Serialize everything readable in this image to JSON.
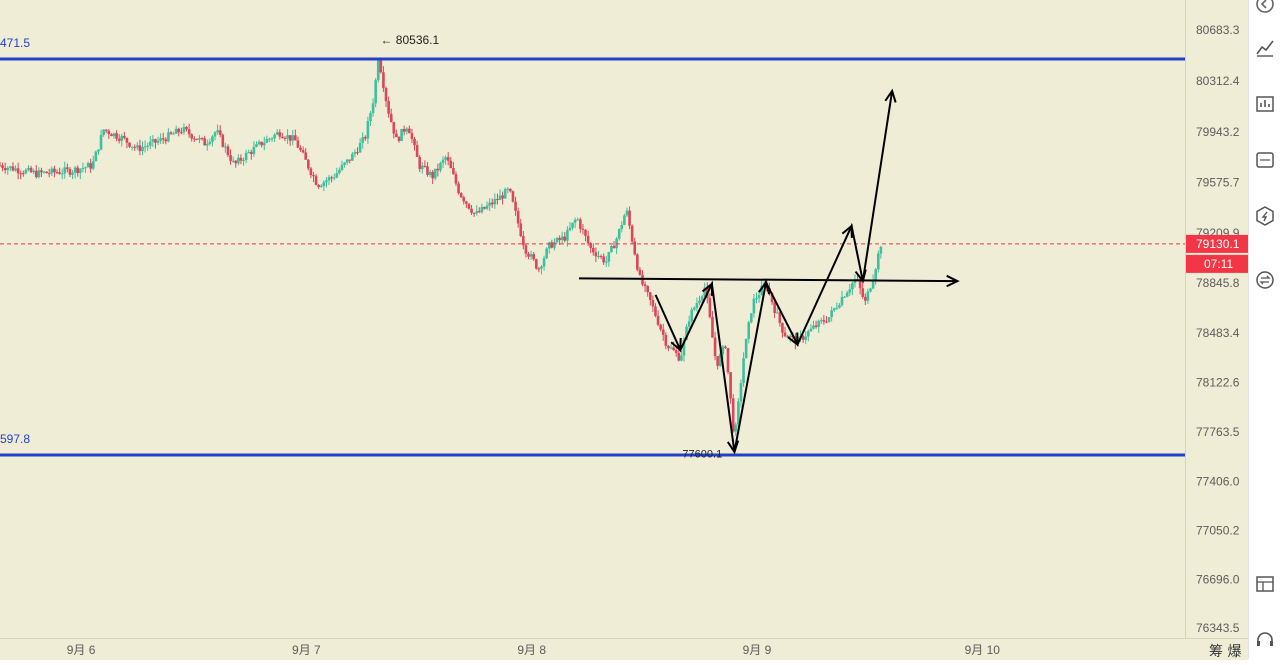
{
  "chart_data": {
    "type": "candlestick",
    "y_ticks": [
      "80683.3",
      "80312.4",
      "79943.2",
      "79575.7",
      "79209.9",
      "78845.8",
      "78483.4",
      "78122.6",
      "77763.5",
      "77406.0",
      "77050.2",
      "76696.0",
      "76343.5"
    ],
    "y_tick_values": [
      80683.3,
      80312.4,
      79943.2,
      79575.7,
      79209.9,
      78845.8,
      78483.4,
      78122.6,
      77763.5,
      77406.0,
      77050.2,
      76696.0,
      76343.5
    ],
    "ylim": [
      76270,
      80900
    ],
    "x_labels": [
      "9月 6",
      "9月 7",
      "9月 8",
      "9月 9",
      "9月 10"
    ],
    "x_label_positions_days": [
      0,
      1,
      2,
      3,
      4
    ],
    "xlim_days": [
      -0.36,
      4.9
    ],
    "current_price": {
      "label": "79130.1",
      "value": 79130.1,
      "countdown": "07:11",
      "color": "#f23645"
    },
    "high_marker": {
      "label": "← 80536.1",
      "value": 80536.1,
      "day": 1.32
    },
    "low_marker": {
      "label": "77600.1",
      "value": 77600.1,
      "day": 2.9
    },
    "horizontal_levels": [
      {
        "label": "471.5",
        "value": 80471.5,
        "color": "#2340c8"
      },
      {
        "label": "597.8",
        "value": 77597.8,
        "color": "#2340c8"
      }
    ],
    "up_color": "#3dbfa0",
    "down_color": "#d9475a",
    "price_path": [
      [
        -0.36,
        79700
      ],
      [
        -0.2,
        79640
      ],
      [
        -0.05,
        79660
      ],
      [
        0.05,
        79700
      ],
      [
        0.1,
        79960
      ],
      [
        0.18,
        79900
      ],
      [
        0.25,
        79820
      ],
      [
        0.35,
        79880
      ],
      [
        0.45,
        79960
      ],
      [
        0.55,
        79860
      ],
      [
        0.6,
        79950
      ],
      [
        0.68,
        79700
      ],
      [
        0.72,
        79760
      ],
      [
        0.8,
        79860
      ],
      [
        0.88,
        79940
      ],
      [
        0.95,
        79880
      ],
      [
        1.0,
        79720
      ],
      [
        1.05,
        79560
      ],
      [
        1.12,
        79620
      ],
      [
        1.2,
        79760
      ],
      [
        1.26,
        79900
      ],
      [
        1.3,
        80200
      ],
      [
        1.32,
        80500
      ],
      [
        1.36,
        80120
      ],
      [
        1.4,
        79880
      ],
      [
        1.45,
        80000
      ],
      [
        1.5,
        79700
      ],
      [
        1.56,
        79620
      ],
      [
        1.62,
        79760
      ],
      [
        1.68,
        79500
      ],
      [
        1.75,
        79340
      ],
      [
        1.82,
        79420
      ],
      [
        1.9,
        79520
      ],
      [
        1.97,
        79100
      ],
      [
        2.03,
        78950
      ],
      [
        2.08,
        79120
      ],
      [
        2.15,
        79180
      ],
      [
        2.2,
        79320
      ],
      [
        2.26,
        79100
      ],
      [
        2.33,
        79000
      ],
      [
        2.38,
        79180
      ],
      [
        2.42,
        79380
      ],
      [
        2.48,
        78880
      ],
      [
        2.53,
        78700
      ],
      [
        2.6,
        78400
      ],
      [
        2.66,
        78300
      ],
      [
        2.7,
        78600
      ],
      [
        2.77,
        78820
      ],
      [
        2.82,
        78250
      ],
      [
        2.86,
        78400
      ],
      [
        2.9,
        77700
      ],
      [
        2.94,
        78300
      ],
      [
        2.98,
        78700
      ],
      [
        3.04,
        78850
      ],
      [
        3.08,
        78650
      ],
      [
        3.12,
        78480
      ],
      [
        3.18,
        78420
      ],
      [
        3.25,
        78520
      ],
      [
        3.32,
        78600
      ],
      [
        3.38,
        78750
      ],
      [
        3.44,
        78880
      ],
      [
        3.48,
        78700
      ],
      [
        3.52,
        78920
      ],
      [
        3.55,
        79130
      ]
    ],
    "annotations": [
      {
        "type": "pattern_arrow",
        "points": [
          [
            2.55,
            78760
          ],
          [
            2.66,
            78360
          ],
          [
            2.8,
            78840
          ],
          [
            2.9,
            77620
          ],
          [
            3.04,
            78850
          ],
          [
            3.18,
            78400
          ],
          [
            3.42,
            79260
          ],
          [
            3.47,
            78860
          ],
          [
            3.6,
            80240
          ]
        ],
        "color": "#000000"
      },
      {
        "type": "neckline_arrow",
        "points": [
          [
            2.21,
            78880
          ],
          [
            3.89,
            78860
          ]
        ],
        "color": "#000000"
      }
    ]
  },
  "toolbar": {
    "items": [
      {
        "name": "back-icon"
      },
      {
        "name": "trend-line-icon"
      },
      {
        "name": "indicator-icon"
      },
      {
        "name": "etf-icon"
      },
      {
        "name": "settings-hex-icon"
      },
      {
        "name": "exchange-icon"
      },
      {
        "name": "layout-icon"
      },
      {
        "name": "headset-icon"
      }
    ]
  },
  "footer": {
    "corner_text": "筹 爆"
  }
}
